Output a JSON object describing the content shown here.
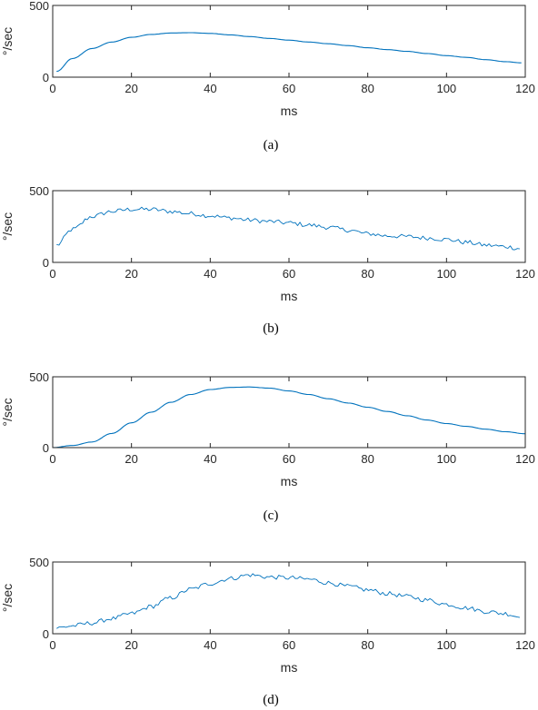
{
  "line_color": "#0072BD",
  "chart_data": [
    {
      "type": "line",
      "caption": "(a)",
      "xlabel": "ms",
      "ylabel": "°/sec",
      "xlim": [
        0,
        120
      ],
      "ylim": [
        0,
        500
      ],
      "xticks": [
        0,
        20,
        40,
        60,
        80,
        100,
        120
      ],
      "yticks": [
        0,
        500
      ],
      "grid": false,
      "noise": 0,
      "x": [
        1,
        5,
        10,
        15,
        20,
        25,
        30,
        35,
        40,
        45,
        50,
        55,
        60,
        65,
        70,
        75,
        80,
        85,
        90,
        95,
        100,
        105,
        110,
        115,
        119
      ],
      "y": [
        40,
        130,
        200,
        245,
        278,
        298,
        308,
        310,
        305,
        295,
        283,
        270,
        258,
        245,
        233,
        220,
        205,
        192,
        180,
        165,
        150,
        138,
        122,
        108,
        100
      ]
    },
    {
      "type": "line",
      "caption": "(b)",
      "xlabel": "ms",
      "ylabel": "°/sec",
      "xlim": [
        0,
        120
      ],
      "ylim": [
        0,
        500
      ],
      "xticks": [
        0,
        20,
        40,
        60,
        80,
        100,
        120
      ],
      "yticks": [
        0,
        500
      ],
      "grid": false,
      "noise": 28,
      "x": [
        1,
        5,
        10,
        15,
        20,
        25,
        30,
        35,
        40,
        45,
        50,
        55,
        60,
        65,
        70,
        75,
        80,
        85,
        90,
        95,
        100,
        105,
        110,
        115,
        119
      ],
      "y": [
        120,
        230,
        320,
        355,
        370,
        370,
        355,
        340,
        325,
        310,
        295,
        285,
        275,
        260,
        245,
        225,
        200,
        185,
        180,
        170,
        160,
        140,
        120,
        110,
        95
      ]
    },
    {
      "type": "line",
      "caption": "(c)",
      "xlabel": "ms",
      "ylabel": "°/sec",
      "xlim": [
        0,
        120
      ],
      "ylim": [
        0,
        500
      ],
      "xticks": [
        0,
        20,
        40,
        60,
        80,
        100,
        120
      ],
      "yticks": [
        0,
        500
      ],
      "grid": false,
      "noise": 0,
      "x": [
        0,
        5,
        10,
        15,
        20,
        25,
        30,
        35,
        40,
        45,
        50,
        55,
        60,
        65,
        70,
        75,
        80,
        85,
        90,
        95,
        100,
        105,
        110,
        115,
        120
      ],
      "y": [
        0,
        15,
        40,
        100,
        175,
        250,
        320,
        375,
        410,
        425,
        428,
        420,
        400,
        375,
        345,
        315,
        285,
        255,
        225,
        195,
        170,
        150,
        130,
        112,
        98
      ]
    },
    {
      "type": "line",
      "caption": "(d)",
      "xlabel": "ms",
      "ylabel": "°/sec",
      "xlim": [
        0,
        120
      ],
      "ylim": [
        0,
        500
      ],
      "xticks": [
        0,
        20,
        40,
        60,
        80,
        100,
        120
      ],
      "yticks": [
        0,
        500
      ],
      "grid": false,
      "noise": 28,
      "x": [
        1,
        5,
        10,
        15,
        20,
        25,
        30,
        35,
        40,
        45,
        50,
        55,
        60,
        65,
        70,
        75,
        80,
        85,
        90,
        95,
        100,
        105,
        110,
        115,
        119
      ],
      "y": [
        40,
        55,
        75,
        105,
        140,
        190,
        250,
        310,
        350,
        385,
        410,
        395,
        390,
        380,
        355,
        330,
        305,
        280,
        260,
        235,
        205,
        180,
        155,
        140,
        115
      ]
    }
  ]
}
